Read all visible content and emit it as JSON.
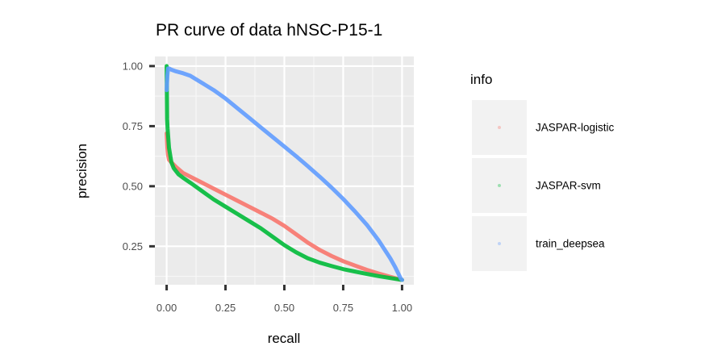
{
  "chart_data": {
    "type": "line",
    "title": "PR curve of data hNSC-P15-1",
    "xlabel": "recall",
    "ylabel": "precision",
    "xlim": [
      -0.05,
      1.05
    ],
    "ylim": [
      0.09,
      1.04
    ],
    "x_ticks": [
      0.0,
      0.25,
      0.5,
      0.75,
      1.0
    ],
    "x_tick_labels": [
      "0.00",
      "0.25",
      "0.50",
      "0.75",
      "1.00"
    ],
    "y_ticks": [
      0.25,
      0.5,
      0.75,
      1.0
    ],
    "y_tick_labels": [
      "0.25",
      "0.50",
      "0.75",
      "1.00"
    ],
    "grid": true,
    "legend_title": "info",
    "legend_position": "right",
    "series": [
      {
        "name": "JASPAR-logistic",
        "color": "#f8766d",
        "x": [
          0.0,
          0.003,
          0.006,
          0.01,
          0.02,
          0.04,
          0.07,
          0.1,
          0.15,
          0.2,
          0.25,
          0.3,
          0.35,
          0.4,
          0.45,
          0.5,
          0.55,
          0.6,
          0.65,
          0.7,
          0.75,
          0.8,
          0.85,
          0.9,
          0.95,
          1.0
        ],
        "y": [
          0.72,
          0.66,
          0.63,
          0.61,
          0.6,
          0.58,
          0.555,
          0.54,
          0.515,
          0.49,
          0.465,
          0.44,
          0.415,
          0.39,
          0.365,
          0.335,
          0.3,
          0.265,
          0.235,
          0.21,
          0.188,
          0.17,
          0.152,
          0.137,
          0.123,
          0.11
        ]
      },
      {
        "name": "JASPAR-svm",
        "color": "#00ba38",
        "x": [
          0.0,
          0.002,
          0.004,
          0.007,
          0.01,
          0.015,
          0.02,
          0.03,
          0.05,
          0.07,
          0.1,
          0.15,
          0.2,
          0.25,
          0.3,
          0.35,
          0.4,
          0.45,
          0.5,
          0.55,
          0.6,
          0.65,
          0.7,
          0.75,
          0.8,
          0.85,
          0.9,
          0.95,
          1.0
        ],
        "y": [
          1.0,
          0.78,
          0.74,
          0.7,
          0.66,
          0.63,
          0.6,
          0.575,
          0.55,
          0.535,
          0.515,
          0.48,
          0.445,
          0.415,
          0.385,
          0.355,
          0.325,
          0.29,
          0.255,
          0.225,
          0.2,
          0.182,
          0.168,
          0.155,
          0.145,
          0.135,
          0.126,
          0.118,
          0.11
        ]
      },
      {
        "name": "train_deepsea",
        "color": "#619cff",
        "x": [
          0.0,
          0.003,
          0.006,
          0.01,
          0.02,
          0.04,
          0.07,
          0.1,
          0.15,
          0.2,
          0.25,
          0.3,
          0.35,
          0.4,
          0.45,
          0.5,
          0.55,
          0.6,
          0.65,
          0.7,
          0.75,
          0.8,
          0.85,
          0.9,
          0.93,
          0.95,
          0.97,
          0.98,
          0.99,
          0.995,
          1.0
        ],
        "y": [
          0.9,
          0.96,
          0.99,
          0.99,
          0.985,
          0.978,
          0.97,
          0.96,
          0.93,
          0.9,
          0.865,
          0.825,
          0.785,
          0.745,
          0.705,
          0.665,
          0.625,
          0.583,
          0.54,
          0.495,
          0.447,
          0.395,
          0.34,
          0.275,
          0.23,
          0.2,
          0.165,
          0.145,
          0.125,
          0.115,
          0.11
        ]
      }
    ]
  }
}
